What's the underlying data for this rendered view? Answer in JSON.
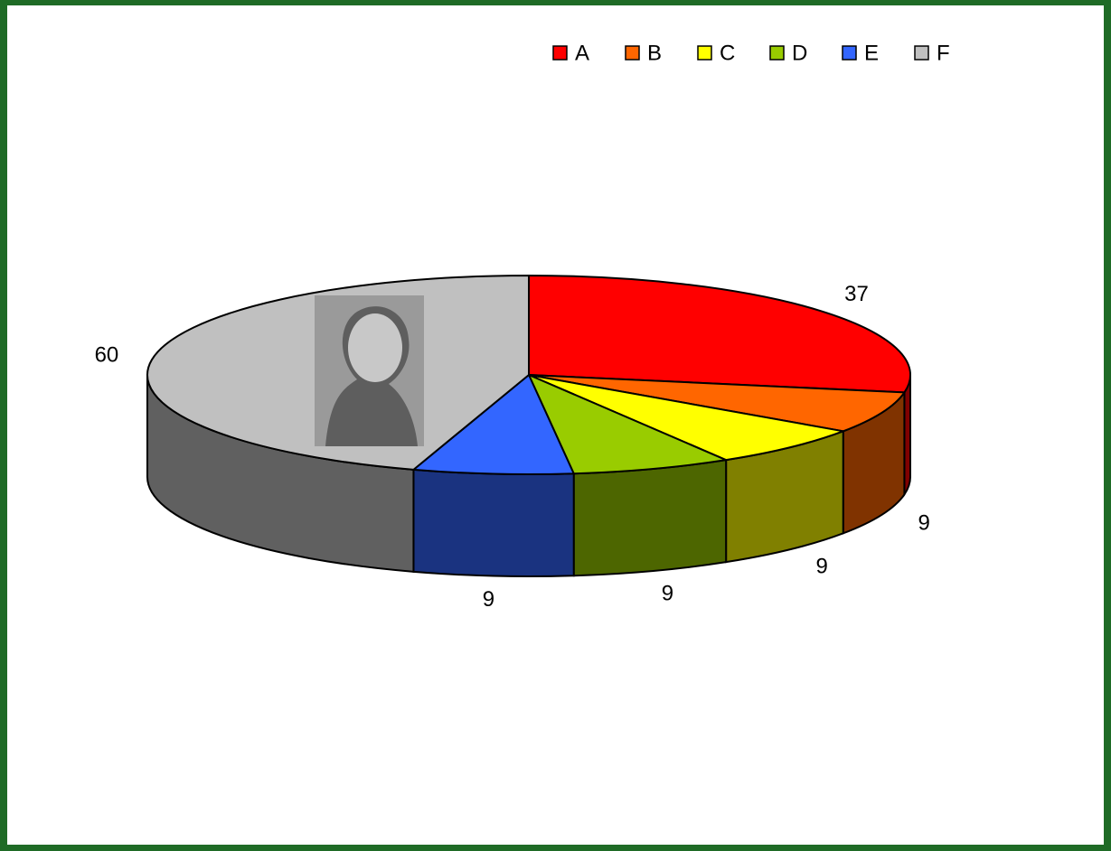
{
  "chart_data": {
    "type": "pie",
    "categories": [
      "A",
      "B",
      "C",
      "D",
      "E",
      "F"
    ],
    "values": [
      37,
      9,
      9,
      9,
      9,
      60
    ],
    "colors": [
      "#ff0000",
      "#ff6600",
      "#ffff00",
      "#99cc00",
      "#3366ff",
      "#c0c0c0"
    ],
    "legend": "top"
  }
}
